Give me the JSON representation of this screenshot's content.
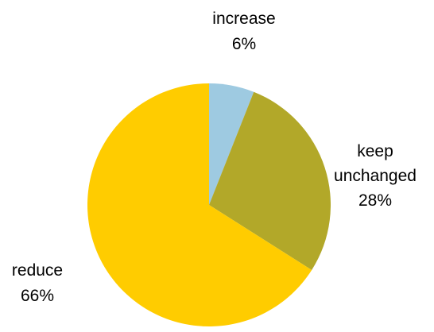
{
  "chart_data": {
    "type": "pie",
    "start_angle_deg": 0,
    "direction": "clockwise",
    "slices": [
      {
        "label": "increase",
        "value": 6,
        "value_label": "6%",
        "color": "#9ECAE1"
      },
      {
        "label": "keep unchanged",
        "label_lines": [
          "keep",
          "unchanged"
        ],
        "value": 28,
        "value_label": "28%",
        "color": "#B2A829"
      },
      {
        "label": "reduce",
        "value": 66,
        "value_label": "66%",
        "color": "#FFCC00"
      }
    ]
  }
}
